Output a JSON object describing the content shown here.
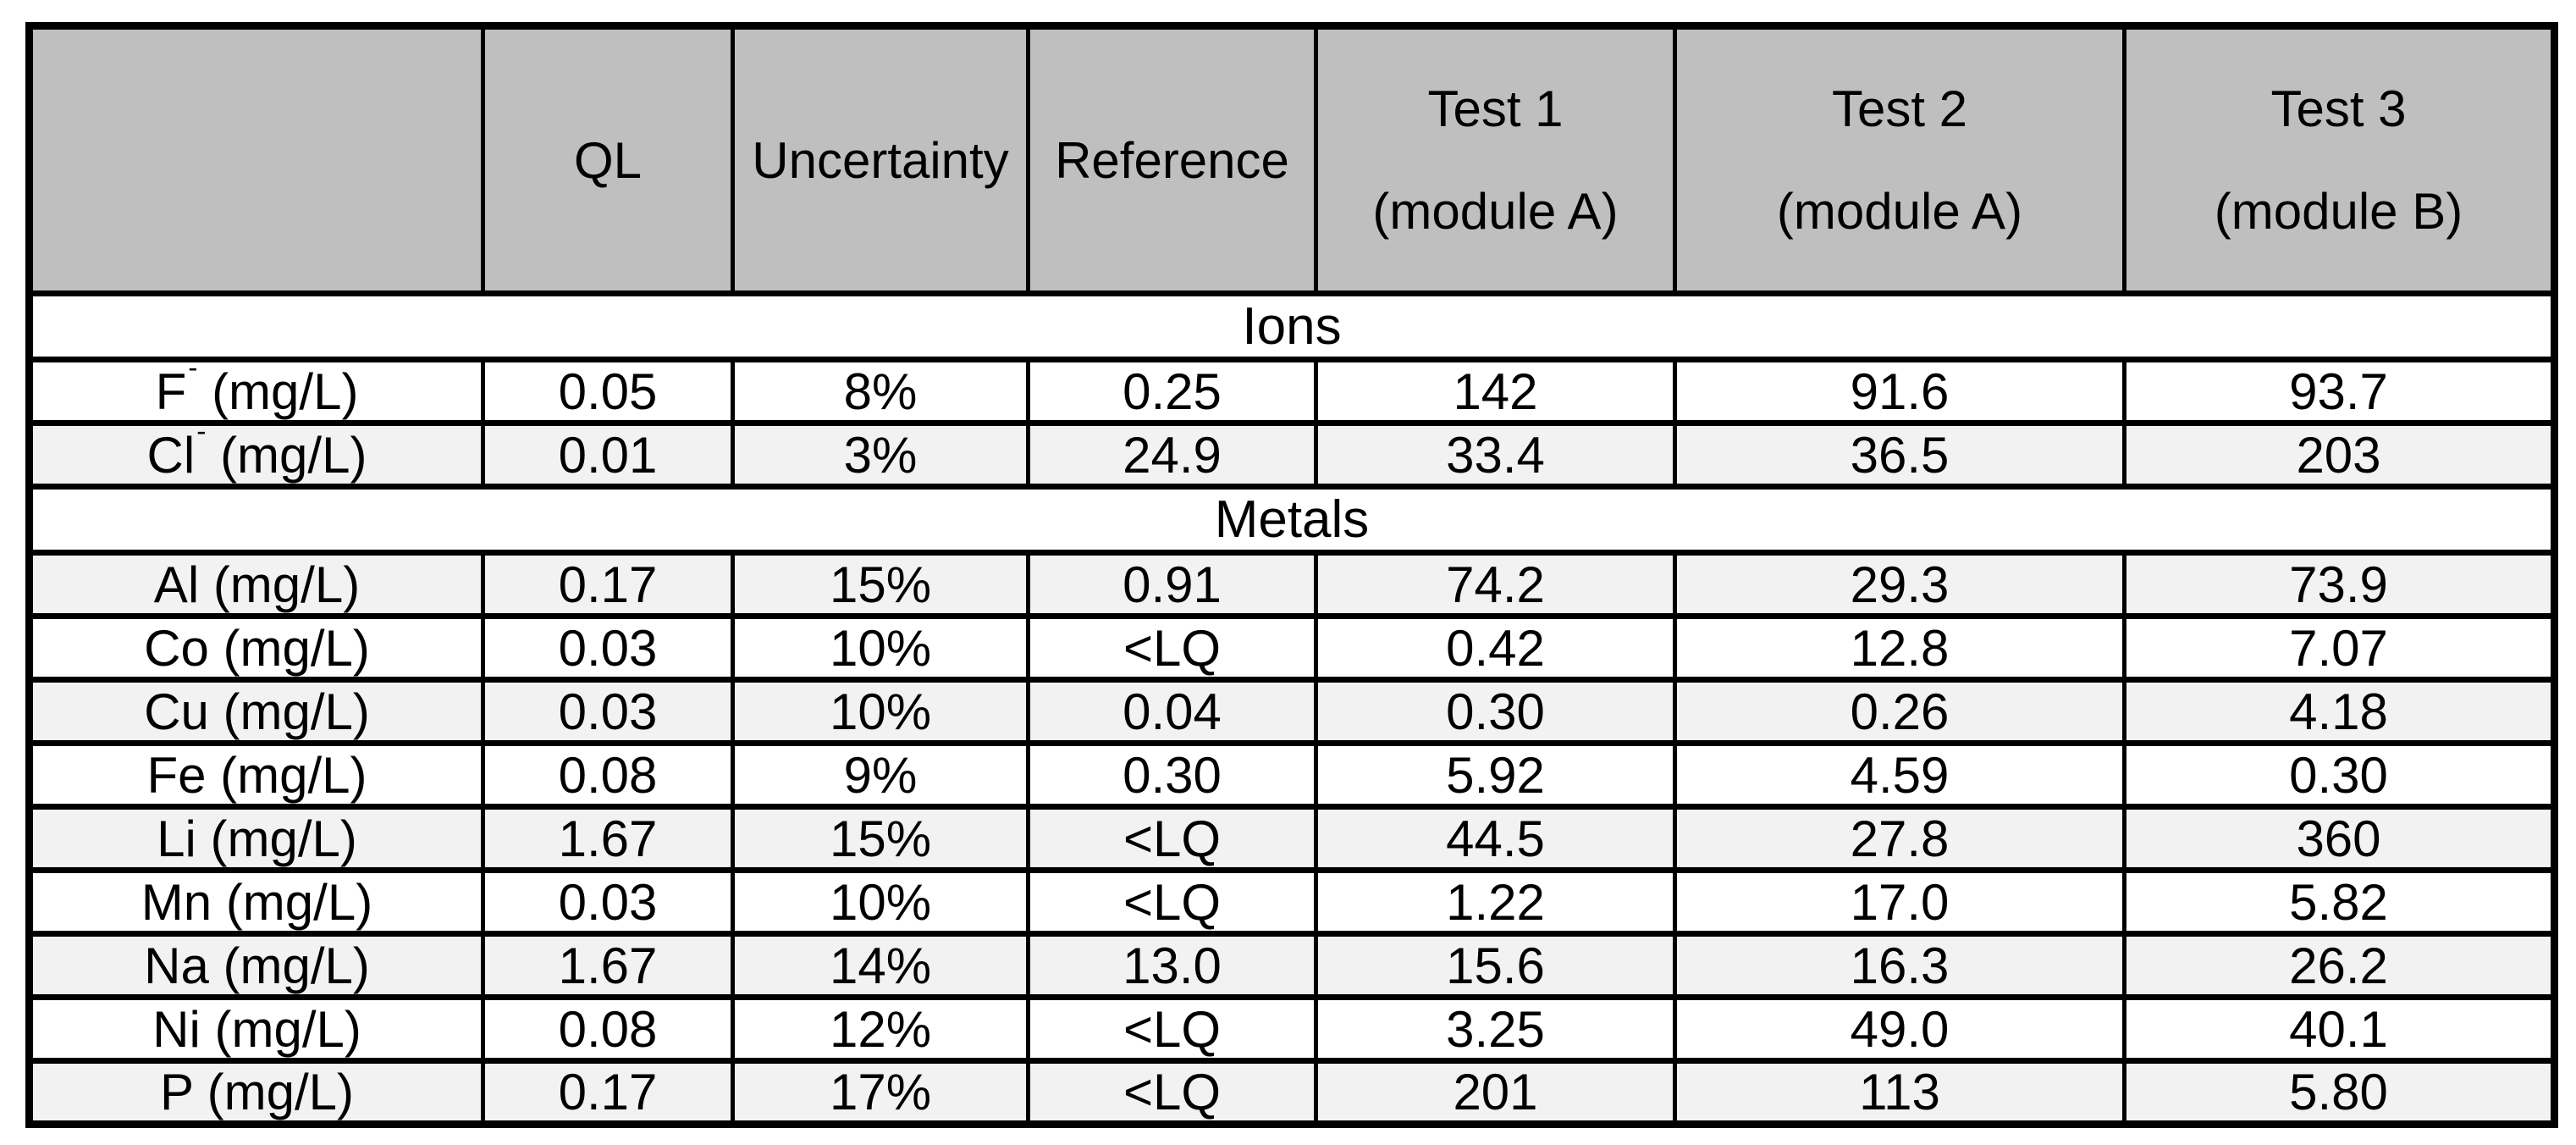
{
  "table": {
    "title_note": "Ions and metals concentrations table",
    "colors": {
      "header_bg": "#bfbfbf",
      "shaded_row_bg": "#f2f2f2",
      "border": "#000000"
    },
    "columns": {
      "blank": "",
      "ql": "QL",
      "uncertainty": "Uncertainty",
      "reference": "Reference",
      "tests": [
        {
          "title": "Test 1",
          "subtitle": "(module A)"
        },
        {
          "title": "Test 2",
          "subtitle": "(module A)"
        },
        {
          "title": "Test 3",
          "subtitle": "(module B)"
        }
      ]
    },
    "sections": [
      {
        "title": "Ions",
        "start_shaded": false,
        "rows": [
          {
            "species": "F",
            "charge": "-",
            "unit": "(mg/L)",
            "ql": "0.05",
            "uncertainty": "8%",
            "reference": "0.25",
            "test1": "142",
            "test2": "91.6",
            "test3": "93.7"
          },
          {
            "species": "Cl",
            "charge": "-",
            "unit": "(mg/L)",
            "ql": "0.01",
            "uncertainty": "3%",
            "reference": "24.9",
            "test1": "33.4",
            "test2": "36.5",
            "test3": "203"
          }
        ]
      },
      {
        "title": "Metals",
        "start_shaded": true,
        "rows": [
          {
            "species": "Al",
            "charge": "",
            "unit": "(mg/L)",
            "ql": "0.17",
            "uncertainty": "15%",
            "reference": "0.91",
            "test1": "74.2",
            "test2": "29.3",
            "test3": "73.9"
          },
          {
            "species": "Co",
            "charge": "",
            "unit": "(mg/L)",
            "ql": "0.03",
            "uncertainty": "10%",
            "reference": "<LQ",
            "test1": "0.42",
            "test2": "12.8",
            "test3": "7.07"
          },
          {
            "species": "Cu",
            "charge": "",
            "unit": "(mg/L)",
            "ql": "0.03",
            "uncertainty": "10%",
            "reference": "0.04",
            "test1": "0.30",
            "test2": "0.26",
            "test3": "4.18"
          },
          {
            "species": "Fe",
            "charge": "",
            "unit": "(mg/L)",
            "ql": "0.08",
            "uncertainty": "9%",
            "reference": "0.30",
            "test1": "5.92",
            "test2": "4.59",
            "test3": "0.30"
          },
          {
            "species": "Li",
            "charge": "",
            "unit": "(mg/L)",
            "ql": "1.67",
            "uncertainty": "15%",
            "reference": "<LQ",
            "test1": "44.5",
            "test2": "27.8",
            "test3": "360"
          },
          {
            "species": "Mn",
            "charge": "",
            "unit": "(mg/L)",
            "ql": "0.03",
            "uncertainty": "10%",
            "reference": "<LQ",
            "test1": "1.22",
            "test2": "17.0",
            "test3": "5.82"
          },
          {
            "species": "Na",
            "charge": "",
            "unit": "(mg/L)",
            "ql": "1.67",
            "uncertainty": "14%",
            "reference": "13.0",
            "test1": "15.6",
            "test2": "16.3",
            "test3": "26.2"
          },
          {
            "species": "Ni",
            "charge": "",
            "unit": "(mg/L)",
            "ql": "0.08",
            "uncertainty": "12%",
            "reference": "<LQ",
            "test1": "3.25",
            "test2": "49.0",
            "test3": "40.1"
          },
          {
            "species": "P",
            "charge": "",
            "unit": "(mg/L)",
            "ql": "0.17",
            "uncertainty": "17%",
            "reference": "<LQ",
            "test1": "201",
            "test2": "113",
            "test3": "5.80"
          }
        ]
      }
    ]
  }
}
